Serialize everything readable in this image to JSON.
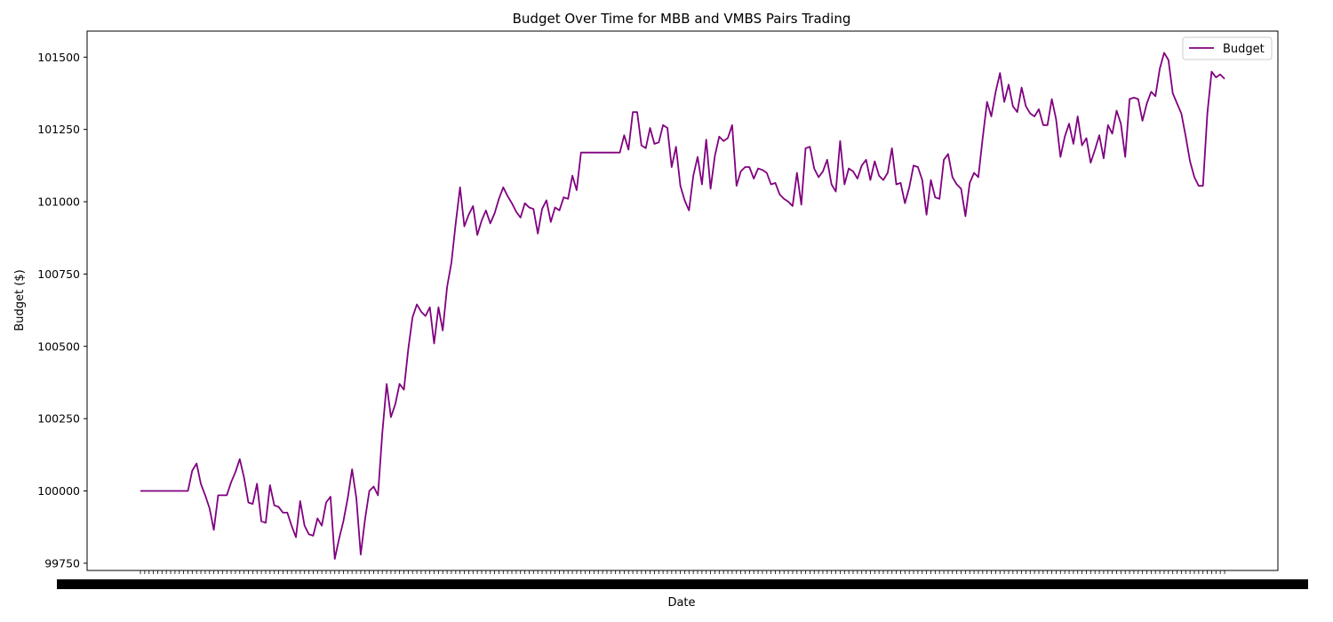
{
  "chart_data": {
    "type": "line",
    "title": "Budget Over Time for MBB and VMBS Pairs Trading",
    "xlabel": "Date",
    "ylabel": "Budget ($)",
    "ylim": [
      99725,
      101590
    ],
    "yticks": [
      99750,
      100000,
      100250,
      100500,
      100750,
      101000,
      101250,
      101500
    ],
    "x_tick_labels_note": "Dense, overlapping date tick labels (unreadable)",
    "legend": {
      "placement": "top-right",
      "entries": [
        "Budget"
      ]
    },
    "grid": false,
    "colors": {
      "line": "#800080",
      "axes": "#000000"
    },
    "series": [
      {
        "name": "Budget",
        "values": [
          100000,
          100000,
          100000,
          100000,
          100000,
          100000,
          100000,
          100000,
          100000,
          100000,
          100000,
          100000,
          100070,
          100095,
          100025,
          99985,
          99940,
          99865,
          99985,
          99985,
          99985,
          100030,
          100065,
          100110,
          100045,
          99960,
          99955,
          100025,
          99895,
          99890,
          100020,
          99950,
          99945,
          99925,
          99925,
          99880,
          99840,
          99965,
          99880,
          99850,
          99845,
          99905,
          99880,
          99960,
          99980,
          99765,
          99835,
          99895,
          99975,
          100075,
          99975,
          99780,
          99900,
          100000,
          100015,
          99985,
          100200,
          100370,
          100255,
          100300,
          100370,
          100350,
          100490,
          100600,
          100645,
          100620,
          100605,
          100635,
          100510,
          100635,
          100555,
          100705,
          100790,
          100925,
          101050,
          100915,
          100955,
          100985,
          100885,
          100935,
          100970,
          100925,
          100960,
          101010,
          101050,
          101020,
          100995,
          100965,
          100945,
          100995,
          100980,
          100975,
          100890,
          100975,
          101005,
          100930,
          100980,
          100970,
          101015,
          101010,
          101090,
          101040,
          101170,
          101170,
          101170,
          101170,
          101170,
          101170,
          101170,
          101170,
          101170,
          101170,
          101230,
          101180,
          101310,
          101310,
          101195,
          101185,
          101255,
          101200,
          101205,
          101265,
          101255,
          101120,
          101190,
          101055,
          101005,
          100970,
          101090,
          101155,
          101060,
          101215,
          101045,
          101160,
          101225,
          101210,
          101220,
          101265,
          101055,
          101105,
          101120,
          101120,
          101080,
          101115,
          101110,
          101100,
          101060,
          101065,
          101025,
          101010,
          101000,
          100985,
          101100,
          100990,
          101185,
          101190,
          101115,
          101085,
          101105,
          101145,
          101060,
          101035,
          101210,
          101060,
          101115,
          101105,
          101080,
          101125,
          101145,
          101075,
          101140,
          101090,
          101075,
          101100,
          101185,
          101060,
          101065,
          100995,
          101050,
          101125,
          101120,
          101075,
          100955,
          101075,
          101015,
          101010,
          101145,
          101165,
          101085,
          101060,
          101045,
          100950,
          101065,
          101100,
          101085,
          101220,
          101345,
          101295,
          101380,
          101445,
          101345,
          101405,
          101330,
          101310,
          101395,
          101330,
          101305,
          101295,
          101320,
          101265,
          101265,
          101355,
          101285,
          101155,
          101225,
          101270,
          101200,
          101295,
          101195,
          101220,
          101135,
          101180,
          101230,
          101150,
          101265,
          101235,
          101315,
          101270,
          101155,
          101355,
          101360,
          101355,
          101280,
          101340,
          101380,
          101365,
          101460,
          101515,
          101490,
          101375,
          101340,
          101305,
          101225,
          101140,
          101085,
          101055,
          101055,
          101305,
          101450,
          101430,
          101440,
          101425
        ]
      }
    ]
  }
}
